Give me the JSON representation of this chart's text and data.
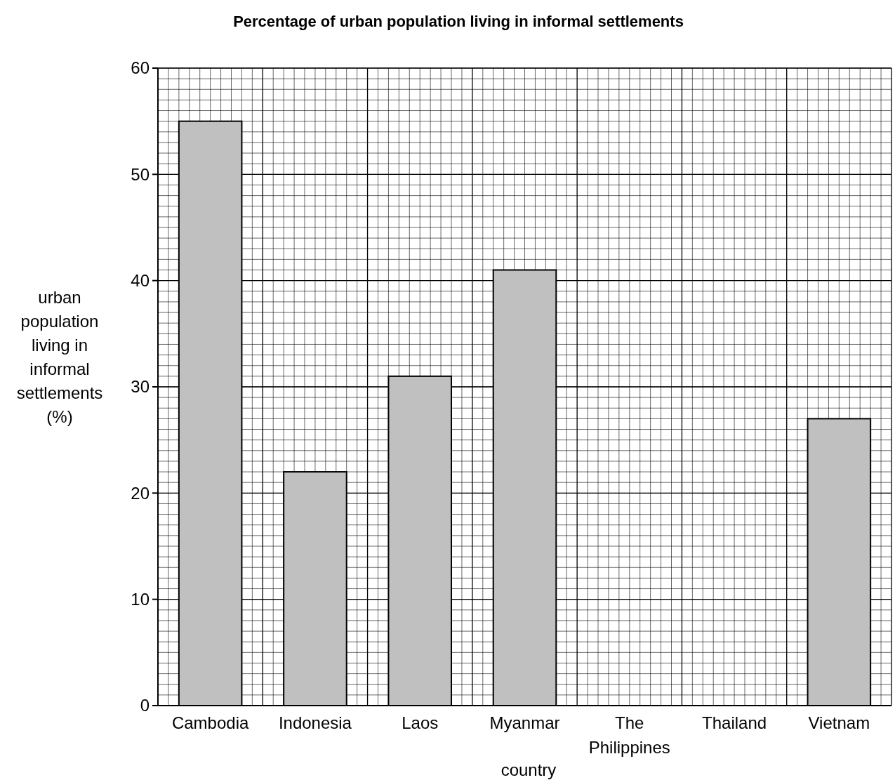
{
  "chart_data": {
    "type": "bar",
    "title": "Percentage of urban population living in informal settlements",
    "xlabel": "country",
    "ylabel": "urban population living in informal settlements (%)",
    "categories": [
      "Cambodia",
      "Indonesia",
      "Laos",
      "Myanmar",
      "The Philippines",
      "Thailand",
      "Vietnam"
    ],
    "values": [
      55,
      22,
      31,
      41,
      null,
      null,
      27
    ],
    "color": "#c0c0c0",
    "ylim": [
      0,
      60
    ],
    "yticks": [
      0,
      10,
      20,
      30,
      40,
      50,
      60
    ],
    "grid": true
  }
}
